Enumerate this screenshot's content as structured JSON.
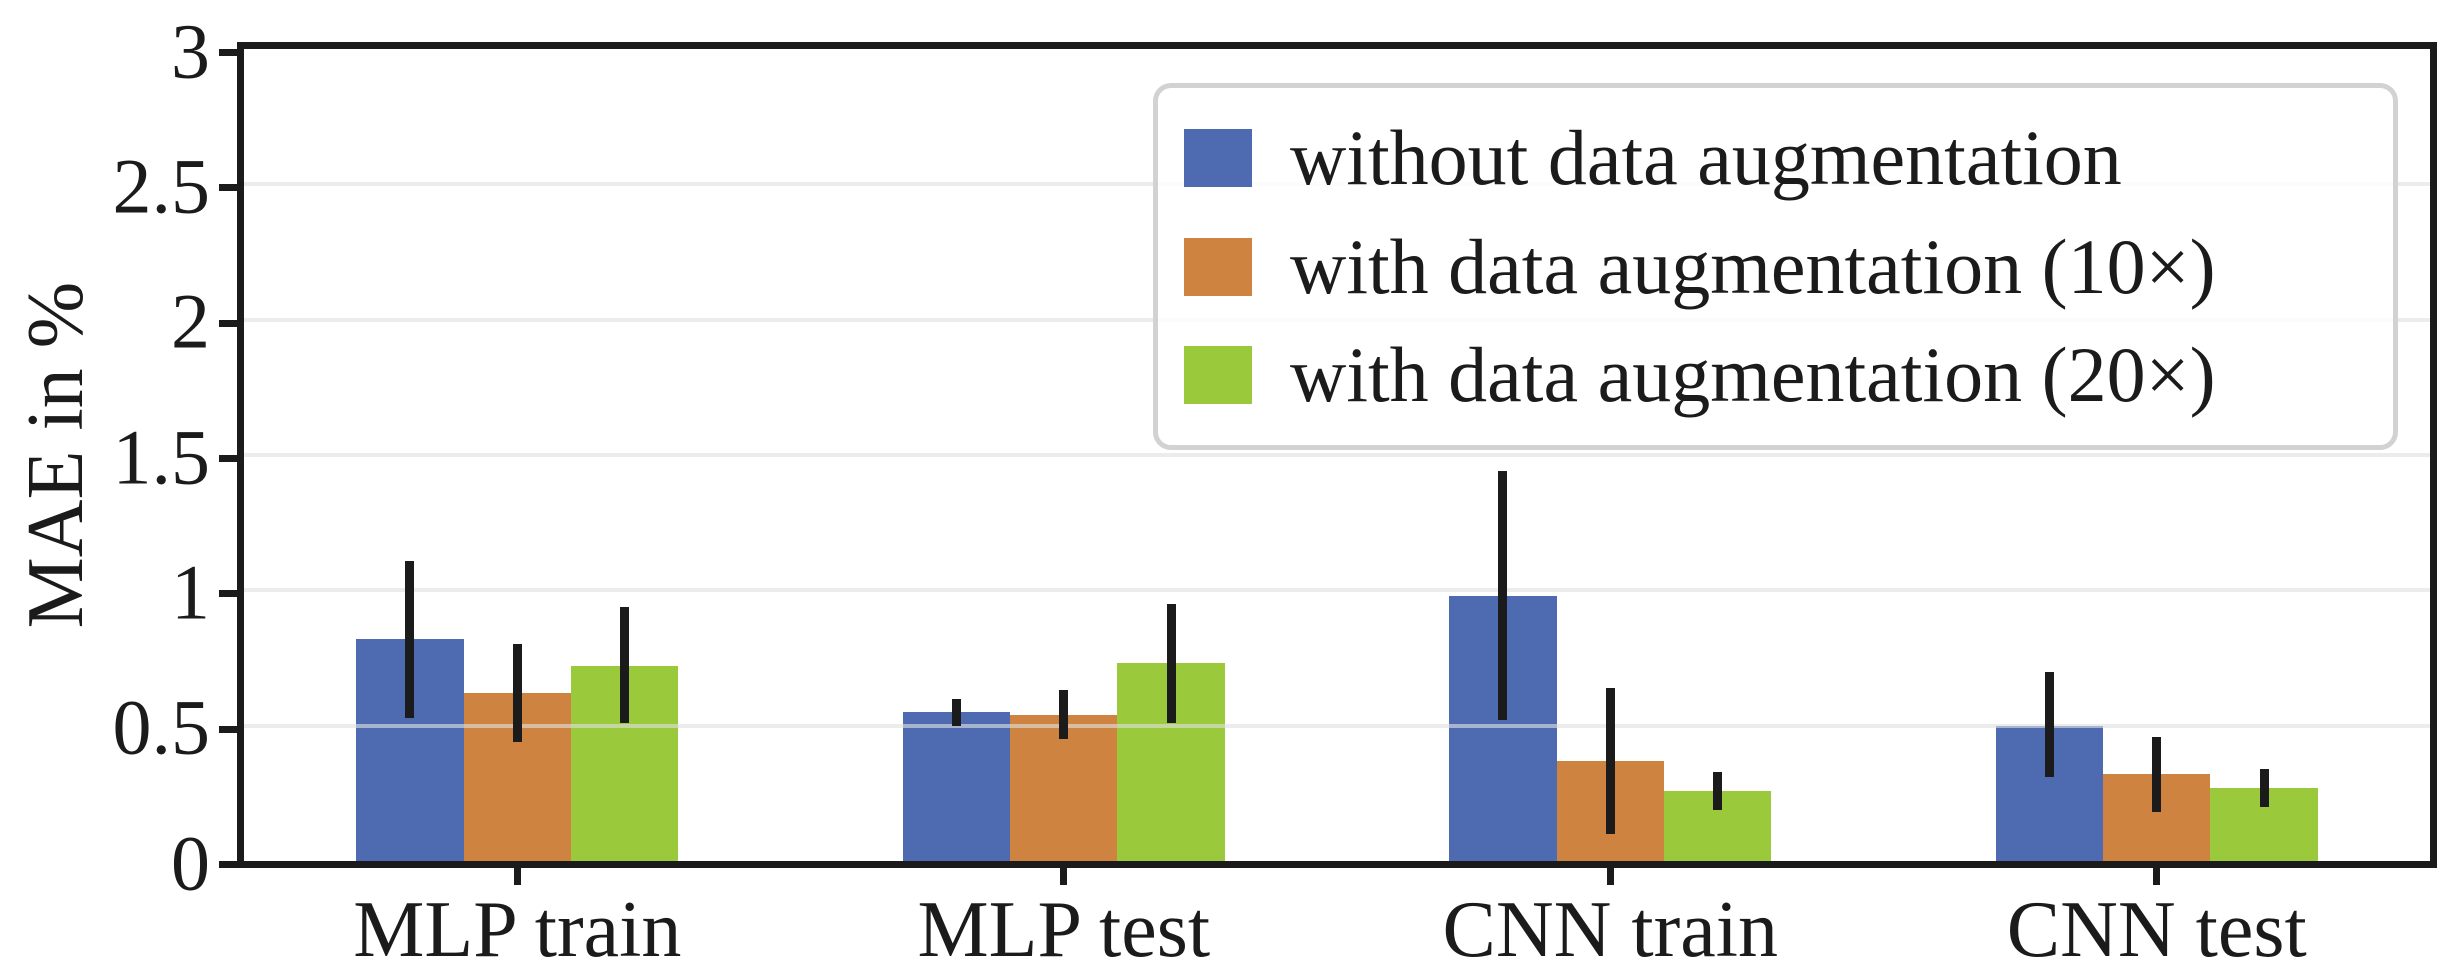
{
  "chart_data": {
    "type": "bar",
    "title": "",
    "xlabel": "",
    "ylabel": "MAE in %",
    "ylim": [
      0,
      3
    ],
    "yticks": [
      0,
      0.5,
      1,
      1.5,
      2,
      2.5,
      3
    ],
    "ytick_labels": [
      "0",
      "0.5",
      "1",
      "1.5",
      "2",
      "2.5",
      "3"
    ],
    "categories": [
      "MLP train",
      "MLP test",
      "CNN train",
      "CNN test"
    ],
    "grid": "horizontal",
    "legend_position": "upper-right",
    "error_bars": "symmetric-std, no caps",
    "series": [
      {
        "name": "without data augmentation",
        "color": "#4E6AB0",
        "values": [
          0.82,
          0.55,
          0.98,
          0.5
        ],
        "err_low": [
          0.53,
          0.5,
          0.52,
          0.31
        ],
        "err_high": [
          1.11,
          0.6,
          1.44,
          0.7
        ]
      },
      {
        "name": "with data augmentation (10×)",
        "color": "#CE8440",
        "values": [
          0.62,
          0.54,
          0.37,
          0.32
        ],
        "err_low": [
          0.44,
          0.45,
          0.1,
          0.18
        ],
        "err_high": [
          0.8,
          0.63,
          0.64,
          0.46
        ]
      },
      {
        "name": "with data augmentation (20×)",
        "color": "#9AC93C",
        "values": [
          0.72,
          0.73,
          0.26,
          0.27
        ],
        "err_low": [
          0.51,
          0.51,
          0.19,
          0.2
        ],
        "err_high": [
          0.94,
          0.95,
          0.33,
          0.34
        ]
      }
    ],
    "colors": {
      "axis": "#1B1B1B",
      "gridline": "#ECECEC",
      "error_bar": "#1B1B1B",
      "legend_border": "#D2D2D2",
      "background": "#FFFFFF"
    }
  }
}
